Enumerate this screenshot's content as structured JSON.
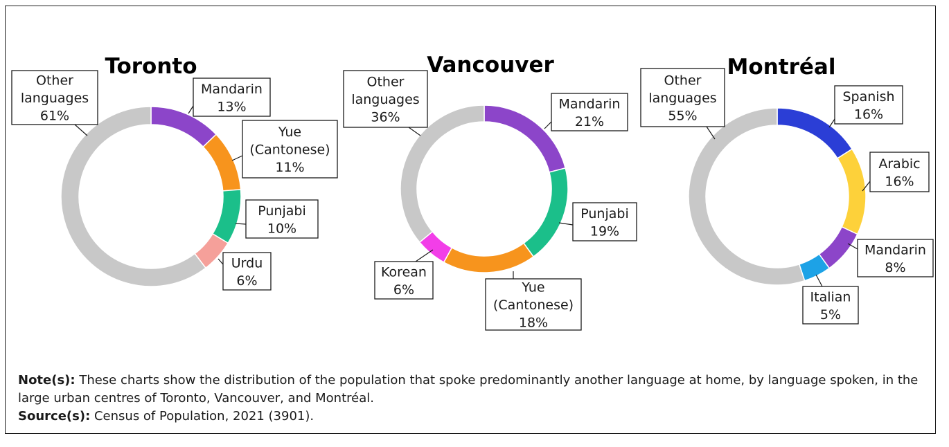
{
  "chart_data": [
    {
      "type": "pie",
      "title": "Toronto",
      "unit": "%",
      "slices": [
        {
          "label": [
            "Mandarin"
          ],
          "value": 13,
          "color": "#8c45c9"
        },
        {
          "label": [
            "Yue",
            "(Cantonese)"
          ],
          "value": 11,
          "color": "#f7941d"
        },
        {
          "label": [
            "Punjabi"
          ],
          "value": 10,
          "color": "#1bbf8a"
        },
        {
          "label": [
            "Urdu"
          ],
          "value": 6,
          "color": "#f5a09a"
        },
        {
          "label": [
            "Other",
            "languages"
          ],
          "value": 61,
          "color": "#c8c8c8"
        }
      ]
    },
    {
      "type": "pie",
      "title": "Vancouver",
      "unit": "%",
      "slices": [
        {
          "label": [
            "Mandarin"
          ],
          "value": 21,
          "color": "#8c45c9"
        },
        {
          "label": [
            "Punjabi"
          ],
          "value": 19,
          "color": "#1bbf8a"
        },
        {
          "label": [
            "Yue",
            "(Cantonese)"
          ],
          "value": 18,
          "color": "#f7941d"
        },
        {
          "label": [
            "Korean"
          ],
          "value": 6,
          "color": "#f23ee8"
        },
        {
          "label": [
            "Other",
            "languages"
          ],
          "value": 36,
          "color": "#c8c8c8"
        }
      ]
    },
    {
      "type": "pie",
      "title": "Montréal",
      "unit": "%",
      "slices": [
        {
          "label": [
            "Spanish"
          ],
          "value": 16,
          "color": "#2b3ed6"
        },
        {
          "label": [
            "Arabic"
          ],
          "value": 16,
          "color": "#fdd13a"
        },
        {
          "label": [
            "Mandarin"
          ],
          "value": 8,
          "color": "#8c45c9"
        },
        {
          "label": [
            "Italian"
          ],
          "value": 5,
          "color": "#1da2e6"
        },
        {
          "label": [
            "Other",
            "languages"
          ],
          "value": 55,
          "color": "#c8c8c8"
        }
      ]
    }
  ],
  "notes": {
    "note_label": "Note(s):",
    "note_text": " These charts show the distribution of the population that spoke predominantly another language at home, by language spoken, in the large urban centres of Toronto, Vancouver, and Montréal.",
    "source_label": "Source(s):",
    "source_text": " Census of Population, 2021 (3901)."
  }
}
